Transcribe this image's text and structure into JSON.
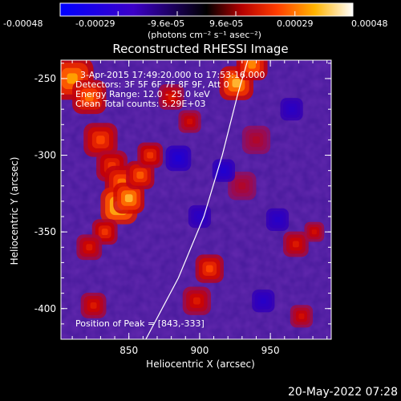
{
  "chart_data": {
    "type": "heatmap",
    "title": "Reconstructed RHESSI Image",
    "xlabel": "Heliocentric X (arcsec)",
    "ylabel": "Heliocentric Y (arcsec)",
    "xlim": [
      802,
      993
    ],
    "ylim": [
      -420,
      -238
    ],
    "x_ticks": [
      "850",
      "900",
      "950"
    ],
    "x_tick_values": [
      850,
      900,
      950
    ],
    "y_ticks": [
      "-250",
      "-300",
      "-350",
      "-400"
    ],
    "y_tick_values": [
      -250,
      -300,
      -350,
      -400
    ],
    "colorbar": {
      "tick_labels": [
        "-0.00048",
        "-0.00029",
        "-9.6e-05",
        "9.6e-05",
        "0.00029",
        "0.00048"
      ],
      "tick_values": [
        -0.00048,
        -0.00029,
        -9.6e-05,
        9.6e-05,
        0.00029,
        0.00048
      ],
      "range": [
        -0.00048,
        0.00048
      ],
      "units": "(photons cm⁻² s⁻¹ asec⁻²)"
    },
    "annotations": {
      "time": "3-Apr-2015 17:49:20.000 to 17:53:16.000",
      "detectors": "Detectors: 3F 5F 6F 7F 8F 9F, Att 0",
      "energy": "Energy Range: 12.0 - 25.0 keV",
      "clean": "Clean    Total counts: 5.29E+03",
      "peak": "Position of Peak = [843,-333]"
    },
    "limb_curve_points": [
      [
        862,
        -420
      ],
      [
        885,
        -380
      ],
      [
        903,
        -340
      ],
      [
        916,
        -300
      ],
      [
        927,
        -260
      ],
      [
        934,
        -238
      ]
    ],
    "blobs": [
      {
        "x": 810,
        "y": -250,
        "intensity": 0.8,
        "r": 15
      },
      {
        "x": 822,
        "y": -262,
        "intensity": 0.7,
        "r": 12
      },
      {
        "x": 830,
        "y": -290,
        "intensity": 0.6,
        "r": 12
      },
      {
        "x": 838,
        "y": -307,
        "intensity": 0.55,
        "r": 11
      },
      {
        "x": 845,
        "y": -318,
        "intensity": 0.7,
        "r": 12
      },
      {
        "x": 843,
        "y": -333,
        "intensity": 1.0,
        "r": 13
      },
      {
        "x": 850,
        "y": -328,
        "intensity": 0.85,
        "r": 11
      },
      {
        "x": 858,
        "y": -313,
        "intensity": 0.65,
        "r": 10
      },
      {
        "x": 865,
        "y": -300,
        "intensity": 0.55,
        "r": 9
      },
      {
        "x": 833,
        "y": -350,
        "intensity": 0.55,
        "r": 9
      },
      {
        "x": 822,
        "y": -360,
        "intensity": 0.45,
        "r": 9
      },
      {
        "x": 880,
        "y": -262,
        "intensity": 0.45,
        "r": 9
      },
      {
        "x": 893,
        "y": -278,
        "intensity": 0.4,
        "r": 8
      },
      {
        "x": 926,
        "y": -253,
        "intensity": 0.85,
        "r": 12
      },
      {
        "x": 937,
        "y": -241,
        "intensity": 0.75,
        "r": 11
      },
      {
        "x": 898,
        "y": -395,
        "intensity": 0.45,
        "r": 10
      },
      {
        "x": 907,
        "y": -374,
        "intensity": 0.6,
        "r": 10
      },
      {
        "x": 968,
        "y": -358,
        "intensity": 0.45,
        "r": 9
      },
      {
        "x": 981,
        "y": -350,
        "intensity": 0.4,
        "r": 7
      },
      {
        "x": 972,
        "y": -405,
        "intensity": 0.4,
        "r": 8
      },
      {
        "x": 825,
        "y": -398,
        "intensity": 0.45,
        "r": 9
      },
      {
        "x": 930,
        "y": -320,
        "intensity": 0.25,
        "r": 10
      },
      {
        "x": 940,
        "y": -290,
        "intensity": 0.25,
        "r": 10
      },
      {
        "x": 885,
        "y": -302,
        "intensity": -0.5,
        "r": 9
      },
      {
        "x": 917,
        "y": -310,
        "intensity": -0.45,
        "r": 8
      },
      {
        "x": 955,
        "y": -342,
        "intensity": -0.35,
        "r": 8
      },
      {
        "x": 945,
        "y": -395,
        "intensity": -0.35,
        "r": 8
      },
      {
        "x": 900,
        "y": -340,
        "intensity": -0.3,
        "r": 8
      },
      {
        "x": 965,
        "y": -270,
        "intensity": -0.3,
        "r": 8
      }
    ]
  },
  "footer": {
    "timestamp": "20-May-2022 07:28"
  }
}
